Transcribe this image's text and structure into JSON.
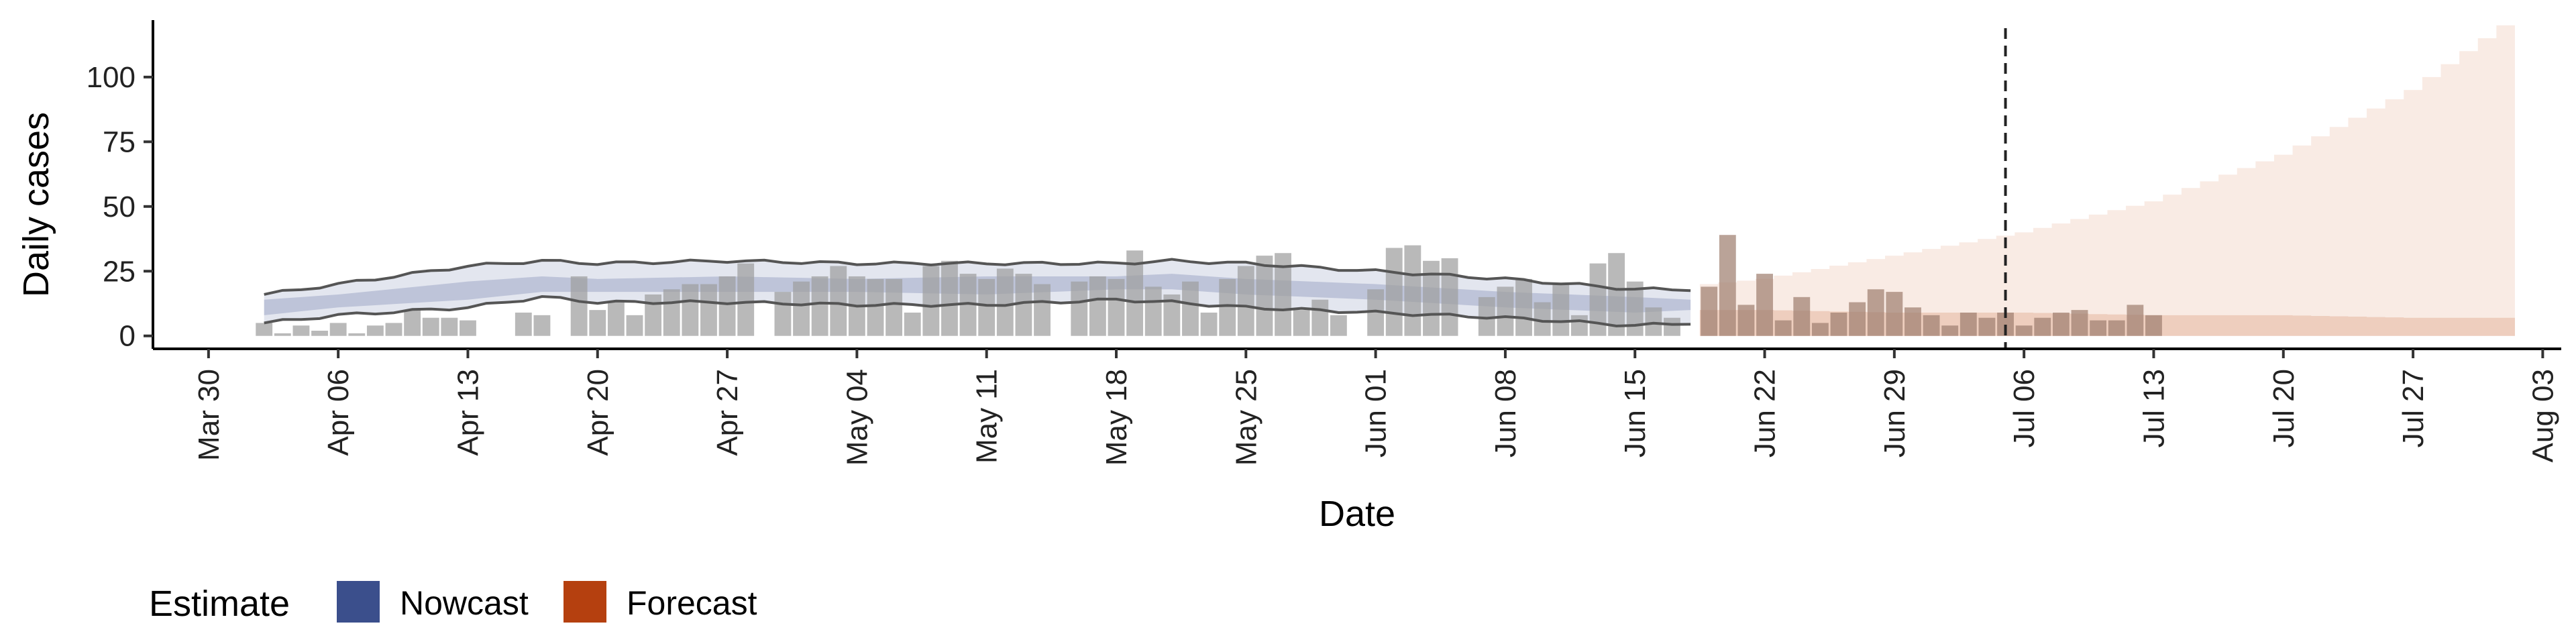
{
  "chart_data": {
    "type": "bar",
    "title": "",
    "xlabel": "Date",
    "ylabel": "Daily cases",
    "ylim": [
      -5,
      122
    ],
    "yticks": [
      0,
      25,
      50,
      75,
      100
    ],
    "xlim": [
      "2020-03-27",
      "2020-08-04"
    ],
    "xticks": [
      "Mar 30",
      "Apr 06",
      "Apr 13",
      "Apr 20",
      "Apr 27",
      "May 04",
      "May 11",
      "May 18",
      "May 25",
      "Jun 01",
      "Jun 08",
      "Jun 15",
      "Jun 22",
      "Jun 29",
      "Jul 06",
      "Jul 13",
      "Jul 20",
      "Jul 27",
      "Aug 03"
    ],
    "xtick_dates": [
      "2020-03-30",
      "2020-04-06",
      "2020-04-13",
      "2020-04-20",
      "2020-04-27",
      "2020-05-04",
      "2020-05-11",
      "2020-05-18",
      "2020-05-25",
      "2020-06-01",
      "2020-06-08",
      "2020-06-15",
      "2020-06-22",
      "2020-06-29",
      "2020-07-06",
      "2020-07-13",
      "2020-07-20",
      "2020-07-27",
      "2020-08-03"
    ],
    "grid": false,
    "legend": {
      "title": "Estimate",
      "position": "bottom-left",
      "entries": [
        {
          "label": "Nowcast",
          "color": "#3b4f8c"
        },
        {
          "label": "Forecast",
          "color": "#b5400f"
        }
      ]
    },
    "colors": {
      "bars": "#9e9e9e",
      "bars_forecast": "#a08070",
      "nowcast_outer": "#3b4f8c",
      "nowcast_inner": "#3b4f8c",
      "forecast_outer": "#e8b89e",
      "forecast_inner": "#d99978",
      "bound_lines": "#555555",
      "vline": "#222222"
    },
    "vline_date": "2020-07-05",
    "bars": {
      "start_date": "2020-04-02",
      "values": [
        5,
        1,
        4,
        2,
        5,
        1,
        4,
        5,
        10,
        7,
        7,
        6,
        0,
        0,
        9,
        8,
        0,
        23,
        10,
        13,
        8,
        16,
        18,
        20,
        20,
        23,
        28,
        0,
        17,
        21,
        23,
        27,
        23,
        22,
        22,
        9,
        27,
        29,
        24,
        22,
        26,
        24,
        20,
        0,
        21,
        23,
        22,
        33,
        19,
        16,
        21,
        9,
        22,
        27,
        31,
        32,
        10,
        14,
        8,
        0,
        18,
        34,
        35,
        29,
        30,
        0,
        15,
        19,
        22,
        13,
        20,
        8,
        28,
        32,
        21,
        11,
        7,
        0,
        19,
        39,
        12,
        24,
        6,
        15,
        5,
        9,
        13,
        18,
        17,
        11,
        8,
        4,
        9,
        7,
        9,
        4,
        7,
        9,
        10,
        6,
        6,
        12,
        8
      ]
    },
    "nowcast": {
      "start_date": "2020-04-02",
      "end_date": "2020-06-18",
      "dates": [
        "2020-04-02",
        "2020-04-06",
        "2020-04-13",
        "2020-04-17",
        "2020-04-20",
        "2020-04-27",
        "2020-05-04",
        "2020-05-11",
        "2020-05-18",
        "2020-05-21",
        "2020-05-25",
        "2020-06-01",
        "2020-06-08",
        "2020-06-15",
        "2020-06-18"
      ],
      "upper": [
        16,
        20,
        27,
        29,
        28,
        29,
        28,
        28,
        28,
        29,
        28,
        25,
        22,
        18,
        18
      ],
      "lower": [
        5,
        8,
        11,
        15,
        13,
        13,
        12,
        12,
        14,
        13,
        11,
        9,
        7,
        4,
        5
      ],
      "inner_upper": [
        14,
        16,
        21,
        23,
        22,
        23,
        22,
        23,
        23,
        24,
        22,
        20,
        17,
        15,
        14
      ],
      "inner_lower": [
        8,
        11,
        14,
        17,
        17,
        17,
        17,
        16,
        18,
        18,
        16,
        14,
        11,
        9,
        10
      ]
    },
    "forecast": {
      "start_date": "2020-06-19",
      "end_date": "2020-08-01",
      "dates": [
        "2020-06-19",
        "2020-06-22",
        "2020-06-29",
        "2020-07-06",
        "2020-07-13",
        "2020-07-20",
        "2020-07-27",
        "2020-07-30",
        "2020-08-01"
      ],
      "upper": [
        20,
        22,
        31,
        40,
        52,
        70,
        95,
        110,
        120
      ],
      "lower": [
        0,
        0,
        0,
        0,
        0,
        0,
        0,
        0,
        0
      ],
      "inner_upper": [
        10,
        10,
        9,
        9,
        8,
        8,
        7,
        7,
        7
      ],
      "inner_lower": [
        0,
        0,
        0,
        0,
        0,
        0,
        0,
        0,
        0
      ]
    }
  }
}
